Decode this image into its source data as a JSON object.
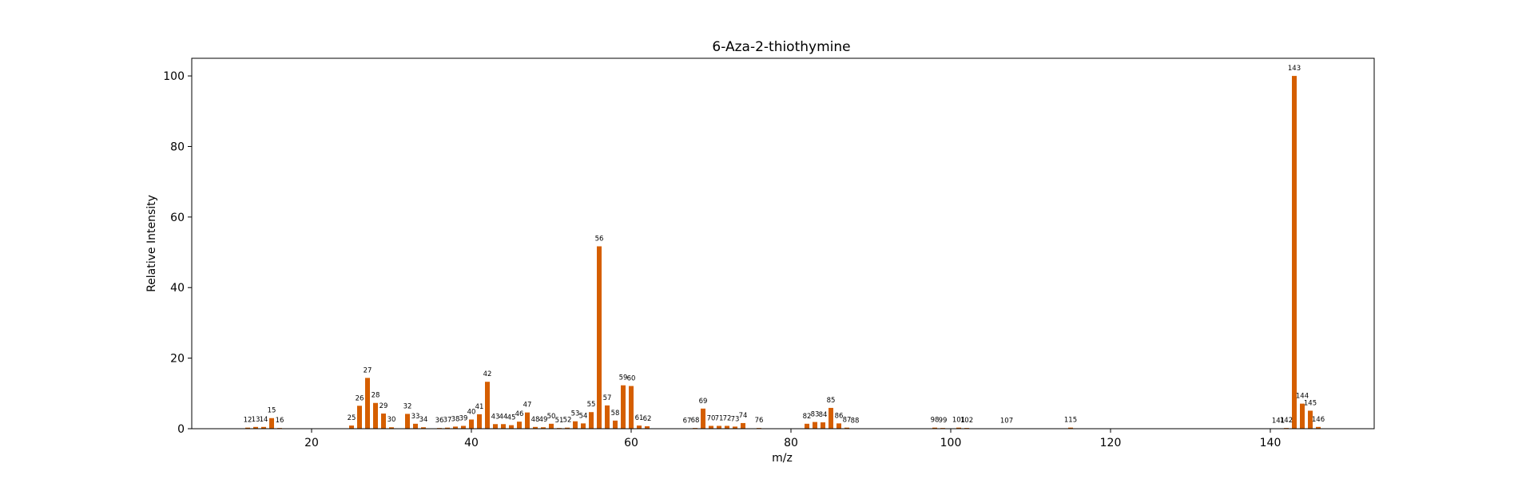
{
  "chart_data": {
    "type": "bar",
    "title": "6-Aza-2-thiothymine",
    "xlabel": "m/z",
    "ylabel": "Relative Intensity",
    "xlim": [
      5,
      153
    ],
    "ylim": [
      0,
      105
    ],
    "xticks": [
      20,
      40,
      60,
      80,
      100,
      120,
      140
    ],
    "yticks": [
      0,
      20,
      40,
      60,
      80,
      100
    ],
    "grid": false,
    "bar_color": "#d55e00",
    "x": [
      12,
      13,
      14,
      15,
      16,
      25,
      26,
      27,
      28,
      29,
      30,
      32,
      33,
      34,
      36,
      37,
      38,
      39,
      40,
      41,
      42,
      43,
      44,
      45,
      46,
      47,
      48,
      49,
      50,
      51,
      52,
      53,
      54,
      55,
      56,
      57,
      58,
      59,
      60,
      61,
      62,
      67,
      68,
      69,
      70,
      71,
      72,
      73,
      74,
      76,
      82,
      83,
      84,
      85,
      86,
      87,
      88,
      98,
      99,
      101,
      102,
      107,
      115,
      141,
      142,
      143,
      144,
      145,
      146
    ],
    "values": [
      0.3,
      0.5,
      0.5,
      3,
      0.2,
      0.9,
      6.5,
      14.4,
      7.3,
      4.3,
      0.4,
      4.2,
      1.4,
      0.4,
      0.2,
      0.3,
      0.6,
      0.8,
      2.6,
      4.1,
      13.3,
      1.3,
      1.3,
      1,
      2,
      4.6,
      0.5,
      0.4,
      1.4,
      0.2,
      0.3,
      2.1,
      1.5,
      4.7,
      51.7,
      6.6,
      2.3,
      12.3,
      12.1,
      0.9,
      0.7,
      0.1,
      0.2,
      5.7,
      0.8,
      0.8,
      0.8,
      0.6,
      1.6,
      0.2,
      1.4,
      1.9,
      1.8,
      5.9,
      1.5,
      0.3,
      0.1,
      0.3,
      0.2,
      0.3,
      0.2,
      0.1,
      0.3,
      0.1,
      0.2,
      100,
      7.1,
      5.1,
      0.5
    ]
  }
}
